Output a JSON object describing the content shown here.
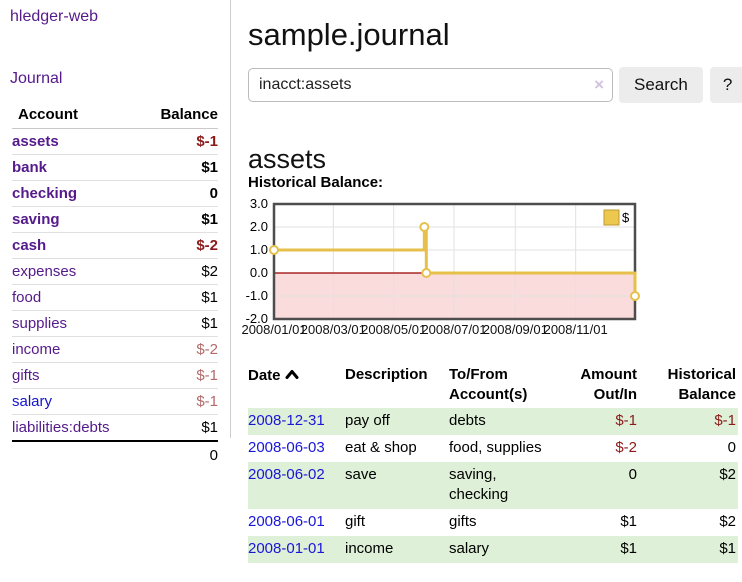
{
  "app": {
    "brand": "hledger-web",
    "nav_journal": "Journal"
  },
  "sidebar": {
    "columns": {
      "account": "Account",
      "balance": "Balance"
    },
    "accounts": [
      {
        "name": "assets",
        "depth": 1,
        "bold": true,
        "balance": "$-1",
        "balance_style": "neg"
      },
      {
        "name": "bank",
        "depth": 2,
        "bold": true,
        "balance": "$1",
        "balance_style": "pos"
      },
      {
        "name": "checking",
        "depth": 3,
        "bold": true,
        "balance": "0",
        "balance_style": "pos"
      },
      {
        "name": "saving",
        "depth": 3,
        "bold": true,
        "balance": "$1",
        "balance_style": "pos"
      },
      {
        "name": "cash",
        "depth": 2,
        "bold": true,
        "balance": "$-2",
        "balance_style": "neg"
      },
      {
        "name": "expenses",
        "depth": 1,
        "bold": false,
        "balance": "$2",
        "balance_style": "pos"
      },
      {
        "name": "food",
        "depth": 2,
        "bold": false,
        "balance": "$1",
        "balance_style": "pos"
      },
      {
        "name": "supplies",
        "depth": 2,
        "bold": false,
        "balance": "$1",
        "balance_style": "pos"
      },
      {
        "name": "income",
        "depth": 1,
        "bold": false,
        "balance": "$-2",
        "balance_style": "neg-light"
      },
      {
        "name": "gifts",
        "depth": 2,
        "bold": false,
        "balance": "$-1",
        "balance_style": "neg-light"
      },
      {
        "name": "salary",
        "depth": 2,
        "bold": false,
        "balance": "$-1",
        "balance_style": "neg-light",
        "link_style": "blue"
      },
      {
        "name": "liabilities:debts",
        "depth": 1,
        "bold": false,
        "balance": "$1",
        "balance_style": "pos"
      }
    ],
    "total": "0"
  },
  "header": {
    "title": "sample.journal"
  },
  "search": {
    "value": "inacct:assets",
    "clear_icon": "×",
    "button_label": "Search",
    "help_label": "?"
  },
  "account_page": {
    "heading": "assets",
    "chart_label": "Historical Balance:"
  },
  "chart_data": {
    "type": "line",
    "step": true,
    "title": "Historical Balance:",
    "legend": "$",
    "legend_position": "top-right",
    "grid": true,
    "x_range": [
      "2008/01/01",
      "2008/12/31"
    ],
    "y_range": [
      -2,
      3
    ],
    "y_ticks": [
      "3.0",
      "2.0",
      "1.0",
      "0.0",
      "-1.0",
      "-2.0"
    ],
    "x_ticks": [
      "2008/01/01",
      "2008/03/01",
      "2008/05/01",
      "2008/07/01",
      "2008/09/01",
      "2008/11/01"
    ],
    "series": [
      {
        "name": "$",
        "color": "#e6c04a",
        "points": [
          [
            "2008/01/01",
            1
          ],
          [
            "2008/06/01",
            2
          ],
          [
            "2008/06/03",
            0
          ],
          [
            "2008/12/31",
            -1
          ]
        ]
      }
    ],
    "colors": {
      "negative_fill": "#fbdcdc",
      "zero_line": "#990000",
      "gridline": "#e2e2e2",
      "plot_border": "#4d4d4d",
      "legend_swatch_fill": "#ecc84f",
      "legend_swatch_border": "#c0992f"
    }
  },
  "register": {
    "columns": {
      "date": "Date",
      "description": "Description",
      "accounts": "To/From Account(s)",
      "amount": "Amount Out/In",
      "balance": "Historical Balance"
    },
    "rows": [
      {
        "date": "2008-12-31",
        "description": "pay off",
        "accounts": "debts",
        "amount": "$-1",
        "amount_neg": true,
        "balance": "$-1",
        "balance_neg": true
      },
      {
        "date": "2008-06-03",
        "description": "eat & shop",
        "accounts": "food, supplies",
        "amount": "$-2",
        "amount_neg": true,
        "balance": "0",
        "balance_neg": false
      },
      {
        "date": "2008-06-02",
        "description": "save",
        "accounts": "saving, checking",
        "amount": "0",
        "amount_neg": false,
        "balance": "$2",
        "balance_neg": false
      },
      {
        "date": "2008-06-01",
        "description": "gift",
        "accounts": "gifts",
        "amount": "$1",
        "amount_neg": false,
        "balance": "$2",
        "balance_neg": false
      },
      {
        "date": "2008-01-01",
        "description": "income",
        "accounts": "salary",
        "amount": "$1",
        "amount_neg": false,
        "balance": "$1",
        "balance_neg": false
      }
    ]
  }
}
